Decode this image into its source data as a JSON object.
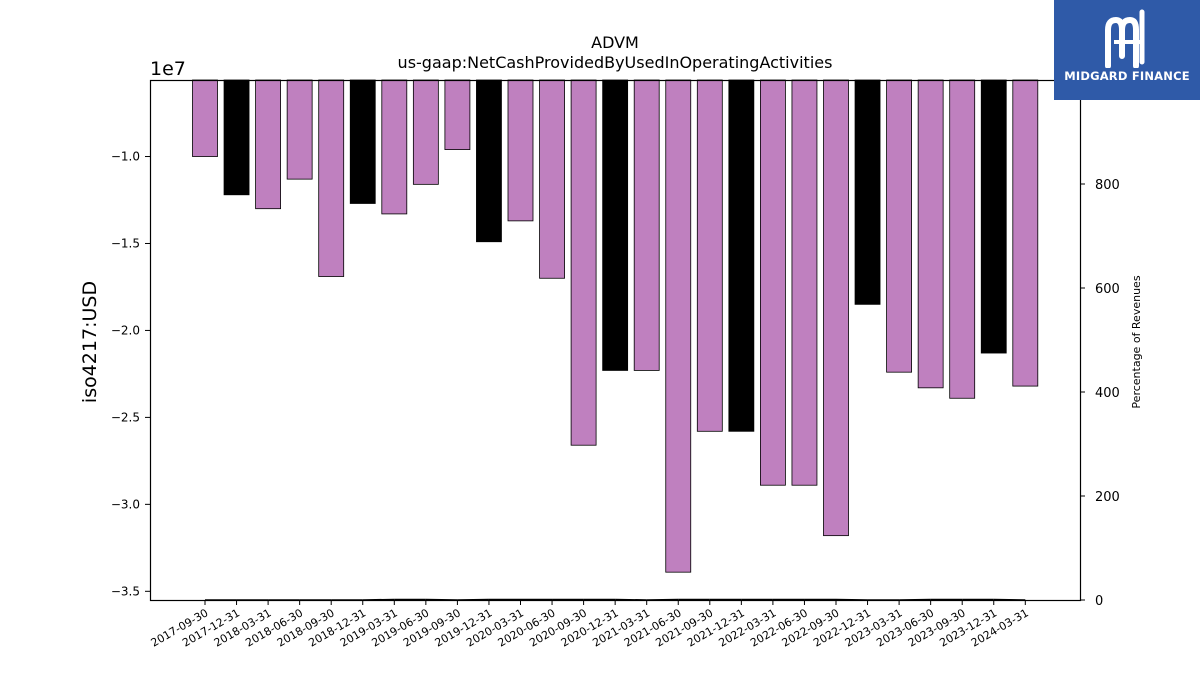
{
  "chart_data": {
    "type": "bar",
    "title": "ADVM",
    "subtitle": "us-gaap:NetCashProvidedByUsedInOperatingActivities",
    "ylabel": "iso4217:USD",
    "y_offset_label": "1e7",
    "y2label": "Percentage of Revenues",
    "ylim": [
      -35500000,
      -5600000
    ],
    "y2lim": [
      0,
      1000
    ],
    "yticks": [
      -10000000,
      -15000000,
      -20000000,
      -25000000,
      -30000000,
      -35000000
    ],
    "ytick_labels": [
      "−1.0",
      "−1.5",
      "−2.0",
      "−2.5",
      "−3.0",
      "−3.5"
    ],
    "y2ticks": [
      0,
      200,
      400,
      600,
      800
    ],
    "categories": [
      "2017-09-30",
      "2017-12-31",
      "2018-03-31",
      "2018-06-30",
      "2018-09-30",
      "2018-12-31",
      "2019-03-31",
      "2019-06-30",
      "2019-09-30",
      "2019-12-31",
      "2020-03-31",
      "2020-06-30",
      "2020-09-30",
      "2020-12-31",
      "2021-03-31",
      "2021-06-30",
      "2021-09-30",
      "2021-12-31",
      "2022-03-31",
      "2022-06-30",
      "2022-09-30",
      "2022-12-31",
      "2023-03-31",
      "2023-06-30",
      "2023-09-30",
      "2023-12-31",
      "2024-03-31"
    ],
    "values": [
      -10000000,
      -12200000,
      -13000000,
      -11300000,
      -16900000,
      -12700000,
      -13300000,
      -11600000,
      -9600000,
      -14900000,
      -13700000,
      -17000000,
      -26600000,
      -22300000,
      -22300000,
      -33900000,
      -25800000,
      -25800000,
      -28900000,
      -28900000,
      -31800000,
      -18500000,
      -22400000,
      -23300000,
      -23900000,
      -21300000,
      -23200000
    ],
    "bar_kinds": [
      "quarter",
      "annual",
      "quarter",
      "quarter",
      "quarter",
      "annual",
      "quarter",
      "quarter",
      "quarter",
      "annual",
      "quarter",
      "quarter",
      "quarter",
      "annual",
      "quarter",
      "quarter",
      "quarter",
      "annual",
      "quarter",
      "quarter",
      "quarter",
      "annual",
      "quarter",
      "quarter",
      "quarter",
      "annual",
      "quarter"
    ],
    "pct_of_revenues": [
      0,
      0,
      0,
      0,
      0,
      0,
      1,
      1,
      0,
      1,
      1,
      1,
      1,
      1,
      0,
      1,
      1,
      1,
      1,
      1,
      1,
      0,
      0,
      1,
      1,
      1,
      0
    ],
    "colors": {
      "quarter": "#bf80bf",
      "annual": "#000000",
      "edge": "#000000",
      "pct_line": "#000000"
    },
    "grid": false,
    "legend": "none"
  },
  "logo": {
    "text": "MIDGARD FINANCE",
    "bg": "#2f5aa8"
  }
}
